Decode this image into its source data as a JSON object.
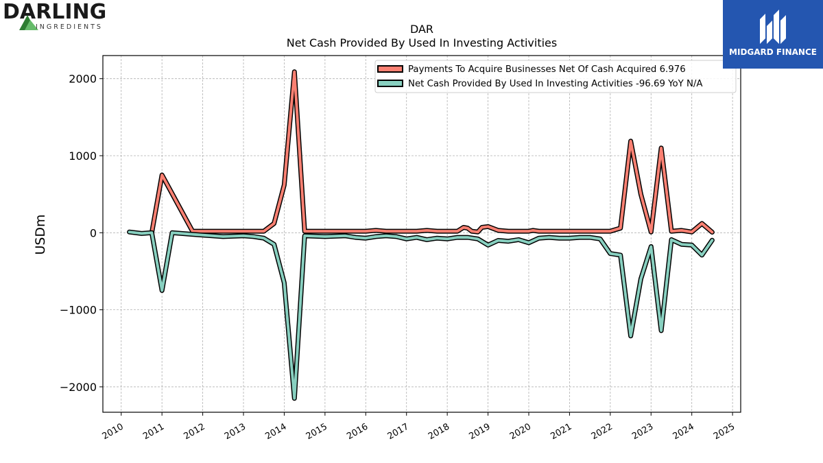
{
  "logos": {
    "left_name": "DARLING",
    "left_sub": "INGREDIENTS",
    "right_name": "MIDGARD FINANCE"
  },
  "chart_data": {
    "type": "line",
    "title": "DAR",
    "subtitle": "Net Cash Provided By Used In Investing Activities",
    "xlabel": "",
    "ylabel": "USDm",
    "xlim": [
      2009.55,
      2025.2
    ],
    "ylim": [
      -2330,
      2300
    ],
    "x_ticks": [
      2010,
      2011,
      2012,
      2013,
      2014,
      2015,
      2016,
      2017,
      2018,
      2019,
      2020,
      2021,
      2022,
      2023,
      2024,
      2025
    ],
    "y_ticks": [
      -2000,
      -1000,
      0,
      1000,
      2000
    ],
    "y_tick_labels": [
      "−2000",
      "−1000",
      "0",
      "1000",
      "2000"
    ],
    "grid": true,
    "legend_position": "top-right",
    "series": [
      {
        "name": "Payments To Acquire Businesses Net Of Cash Acquired  6.976",
        "color": "#fa8072",
        "x": [
          2010.75,
          2011.0,
          2011.75,
          2012.25,
          2012.75,
          2013.25,
          2013.5,
          2013.75,
          2014.0,
          2014.25,
          2014.5,
          2015.0,
          2015.5,
          2016.0,
          2016.25,
          2016.5,
          2017.0,
          2017.25,
          2017.5,
          2017.75,
          2018.0,
          2018.25,
          2018.4,
          2018.5,
          2018.6,
          2018.75,
          2018.85,
          2019.0,
          2019.25,
          2019.5,
          2019.75,
          2020.0,
          2020.1,
          2020.25,
          2020.5,
          2020.75,
          2021.0,
          2021.25,
          2021.5,
          2021.75,
          2022.0,
          2022.25,
          2022.5,
          2022.75,
          2023.0,
          2023.25,
          2023.5,
          2023.75,
          2024.0,
          2024.25,
          2024.5
        ],
        "y": [
          0,
          750,
          20,
          20,
          20,
          20,
          20,
          120,
          620,
          2090,
          20,
          20,
          20,
          20,
          30,
          20,
          20,
          20,
          30,
          20,
          20,
          20,
          70,
          60,
          20,
          10,
          70,
          80,
          30,
          20,
          20,
          20,
          30,
          20,
          20,
          20,
          20,
          20,
          20,
          20,
          20,
          60,
          1190,
          500,
          10,
          1100,
          20,
          30,
          10,
          120,
          7
        ]
      },
      {
        "name": "Net Cash Provided By Used In Investing Activities  -96.69 YoY N/A",
        "color": "#88d0c0",
        "x": [
          2010.2,
          2010.5,
          2010.75,
          2011.0,
          2011.25,
          2011.75,
          2012.0,
          2012.5,
          2013.0,
          2013.25,
          2013.5,
          2013.75,
          2014.0,
          2014.25,
          2014.5,
          2015.0,
          2015.5,
          2015.75,
          2016.0,
          2016.25,
          2016.5,
          2016.75,
          2017.0,
          2017.25,
          2017.5,
          2017.75,
          2018.0,
          2018.25,
          2018.5,
          2018.75,
          2019.0,
          2019.25,
          2019.5,
          2019.75,
          2020.0,
          2020.25,
          2020.5,
          2020.75,
          2021.0,
          2021.25,
          2021.5,
          2021.75,
          2022.0,
          2022.25,
          2022.5,
          2022.75,
          2023.0,
          2023.25,
          2023.5,
          2023.75,
          2024.0,
          2024.25,
          2024.5
        ],
        "y": [
          10,
          -10,
          0,
          -750,
          0,
          -20,
          -30,
          -50,
          -40,
          -50,
          -70,
          -150,
          -650,
          -2150,
          -40,
          -50,
          -40,
          -60,
          -70,
          -50,
          -40,
          -50,
          -80,
          -60,
          -90,
          -70,
          -80,
          -60,
          -60,
          -80,
          -160,
          -100,
          -110,
          -90,
          -130,
          -70,
          -60,
          -70,
          -70,
          -60,
          -60,
          -80,
          -270,
          -290,
          -1340,
          -600,
          -180,
          -1270,
          -90,
          -150,
          -160,
          -290,
          -97
        ]
      }
    ]
  }
}
